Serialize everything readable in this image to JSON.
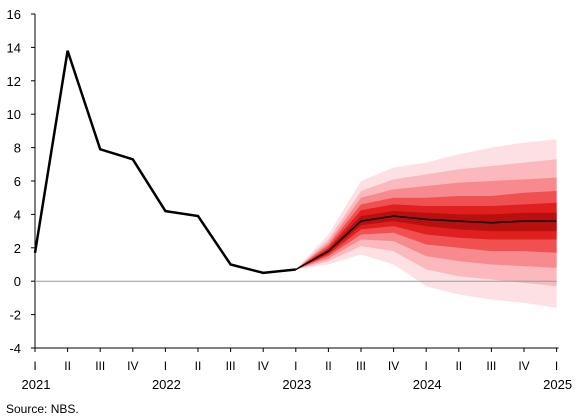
{
  "chart_data": {
    "type": "line",
    "title": "",
    "xlabel": "",
    "ylabel": "",
    "ylim": [
      -4,
      16
    ],
    "yticks": [
      -4,
      -2,
      0,
      2,
      4,
      6,
      8,
      10,
      12,
      14,
      16
    ],
    "quarters": [
      "I",
      "II",
      "III",
      "IV",
      "I",
      "II",
      "III",
      "IV",
      "I",
      "II",
      "III",
      "IV",
      "I",
      "II",
      "III",
      "IV",
      "I"
    ],
    "years": [
      {
        "label": "2021",
        "index": 0
      },
      {
        "label": "2022",
        "index": 4
      },
      {
        "label": "2023",
        "index": 8
      },
      {
        "label": "2024",
        "index": 12
      },
      {
        "label": "2025",
        "index": 16
      }
    ],
    "actual": {
      "x": [
        "2021 I",
        "2021 II",
        "2021 III",
        "2021 IV",
        "2022 I",
        "2022 II",
        "2022 III",
        "2022 IV",
        "2023 I"
      ],
      "values": [
        1.7,
        13.8,
        7.9,
        7.3,
        4.2,
        3.9,
        1.0,
        0.5,
        0.7
      ]
    },
    "fan": {
      "x": [
        "2023 I",
        "2023 II",
        "2023 III",
        "2023 IV",
        "2024 I",
        "2024 II",
        "2024 III",
        "2024 IV",
        "2025 I"
      ],
      "central": [
        0.7,
        1.8,
        3.6,
        3.9,
        3.7,
        3.6,
        3.5,
        3.6,
        3.6
      ],
      "bands": [
        {
          "lower": [
            0.7,
            1.0,
            1.6,
            1.0,
            -0.3,
            -0.8,
            -1.1,
            -1.3,
            -1.6
          ],
          "upper": [
            0.7,
            2.8,
            6.0,
            6.8,
            7.1,
            7.6,
            8.0,
            8.3,
            8.5
          ],
          "color": "#fde0e4"
        },
        {
          "lower": [
            0.7,
            1.2,
            2.1,
            1.8,
            0.7,
            0.3,
            0.1,
            -0.1,
            -0.3
          ],
          "upper": [
            0.7,
            2.5,
            5.4,
            6.1,
            6.4,
            6.7,
            6.9,
            7.1,
            7.3
          ],
          "color": "#fbb8bd"
        },
        {
          "lower": [
            0.7,
            1.35,
            2.5,
            2.4,
            1.5,
            1.2,
            1.0,
            0.9,
            0.8
          ],
          "upper": [
            0.7,
            2.3,
            5.0,
            5.5,
            5.7,
            5.9,
            6.0,
            6.1,
            6.2
          ],
          "color": "#f78a8f"
        },
        {
          "lower": [
            0.7,
            1.5,
            2.8,
            2.9,
            2.2,
            2.0,
            1.8,
            1.8,
            1.7
          ],
          "upper": [
            0.7,
            2.15,
            4.6,
            5.0,
            5.0,
            5.1,
            5.1,
            5.3,
            5.4
          ],
          "color": "#f05050"
        },
        {
          "lower": [
            0.7,
            1.6,
            3.1,
            3.3,
            2.8,
            2.6,
            2.5,
            2.5,
            2.5
          ],
          "upper": [
            0.7,
            2.0,
            4.25,
            4.6,
            4.5,
            4.5,
            4.5,
            4.6,
            4.7
          ],
          "color": "#e01f1f"
        },
        {
          "lower": [
            0.7,
            1.7,
            3.35,
            3.6,
            3.3,
            3.1,
            3.0,
            3.0,
            3.0
          ],
          "upper": [
            0.7,
            1.9,
            3.9,
            4.2,
            4.1,
            4.0,
            4.0,
            4.1,
            4.1
          ],
          "color": "#b80f0f"
        }
      ]
    }
  },
  "source": "Source: NBS."
}
